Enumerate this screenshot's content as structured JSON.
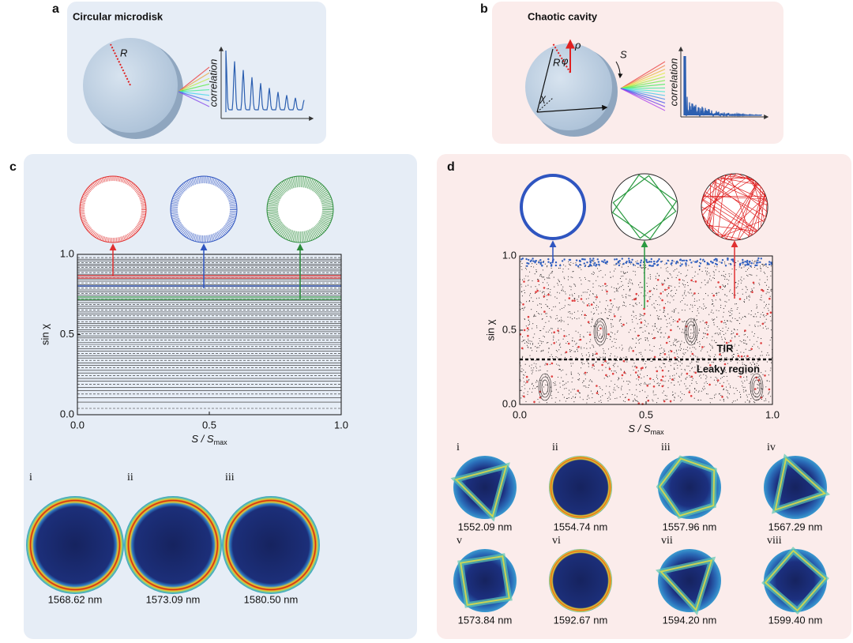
{
  "panel_a": {
    "label": "a",
    "title": "Circular microdisk",
    "radius_label": "R",
    "plot_axis_label": "correlation"
  },
  "panel_b": {
    "label": "b",
    "title": "Chaotic cavity",
    "radius_label": "R",
    "rho_label": "ρ",
    "phi_label": "φ",
    "chi_label": "χ",
    "s_label": "S",
    "plot_axis_label": "correlation"
  },
  "panel_c": {
    "label": "c",
    "y_axis_label": "sin χ",
    "x_axis_label": {
      "text": "S / S",
      "sub": "max"
    },
    "yticks": [
      "1.0",
      "0.5",
      "0.0"
    ],
    "xticks": [
      "0.0",
      "0.5",
      "1.0"
    ],
    "modes": [
      {
        "index": "i",
        "wavelength": "1568.62 nm"
      },
      {
        "index": "ii",
        "wavelength": "1573.09 nm"
      },
      {
        "index": "iii",
        "wavelength": "1580.50 nm"
      }
    ]
  },
  "panel_d": {
    "label": "d",
    "y_axis_label": "sin χ",
    "x_axis_label": {
      "text": "S / S",
      "sub": "max"
    },
    "yticks": [
      "1.0",
      "0.5",
      "0.0"
    ],
    "xticks": [
      "0.0",
      "0.5",
      "1.0"
    ],
    "annotations": {
      "tir": "TIR",
      "leaky": "Leaky region"
    },
    "modes": [
      {
        "index": "i",
        "wavelength": "1552.09 nm"
      },
      {
        "index": "ii",
        "wavelength": "1554.74 nm"
      },
      {
        "index": "iii",
        "wavelength": "1557.96 nm"
      },
      {
        "index": "iv",
        "wavelength": "1567.29 nm"
      },
      {
        "index": "v",
        "wavelength": "1573.84 nm"
      },
      {
        "index": "vi",
        "wavelength": "1592.67 nm"
      },
      {
        "index": "vii",
        "wavelength": "1594.20 nm"
      },
      {
        "index": "viii",
        "wavelength": "1599.40 nm"
      }
    ]
  }
}
